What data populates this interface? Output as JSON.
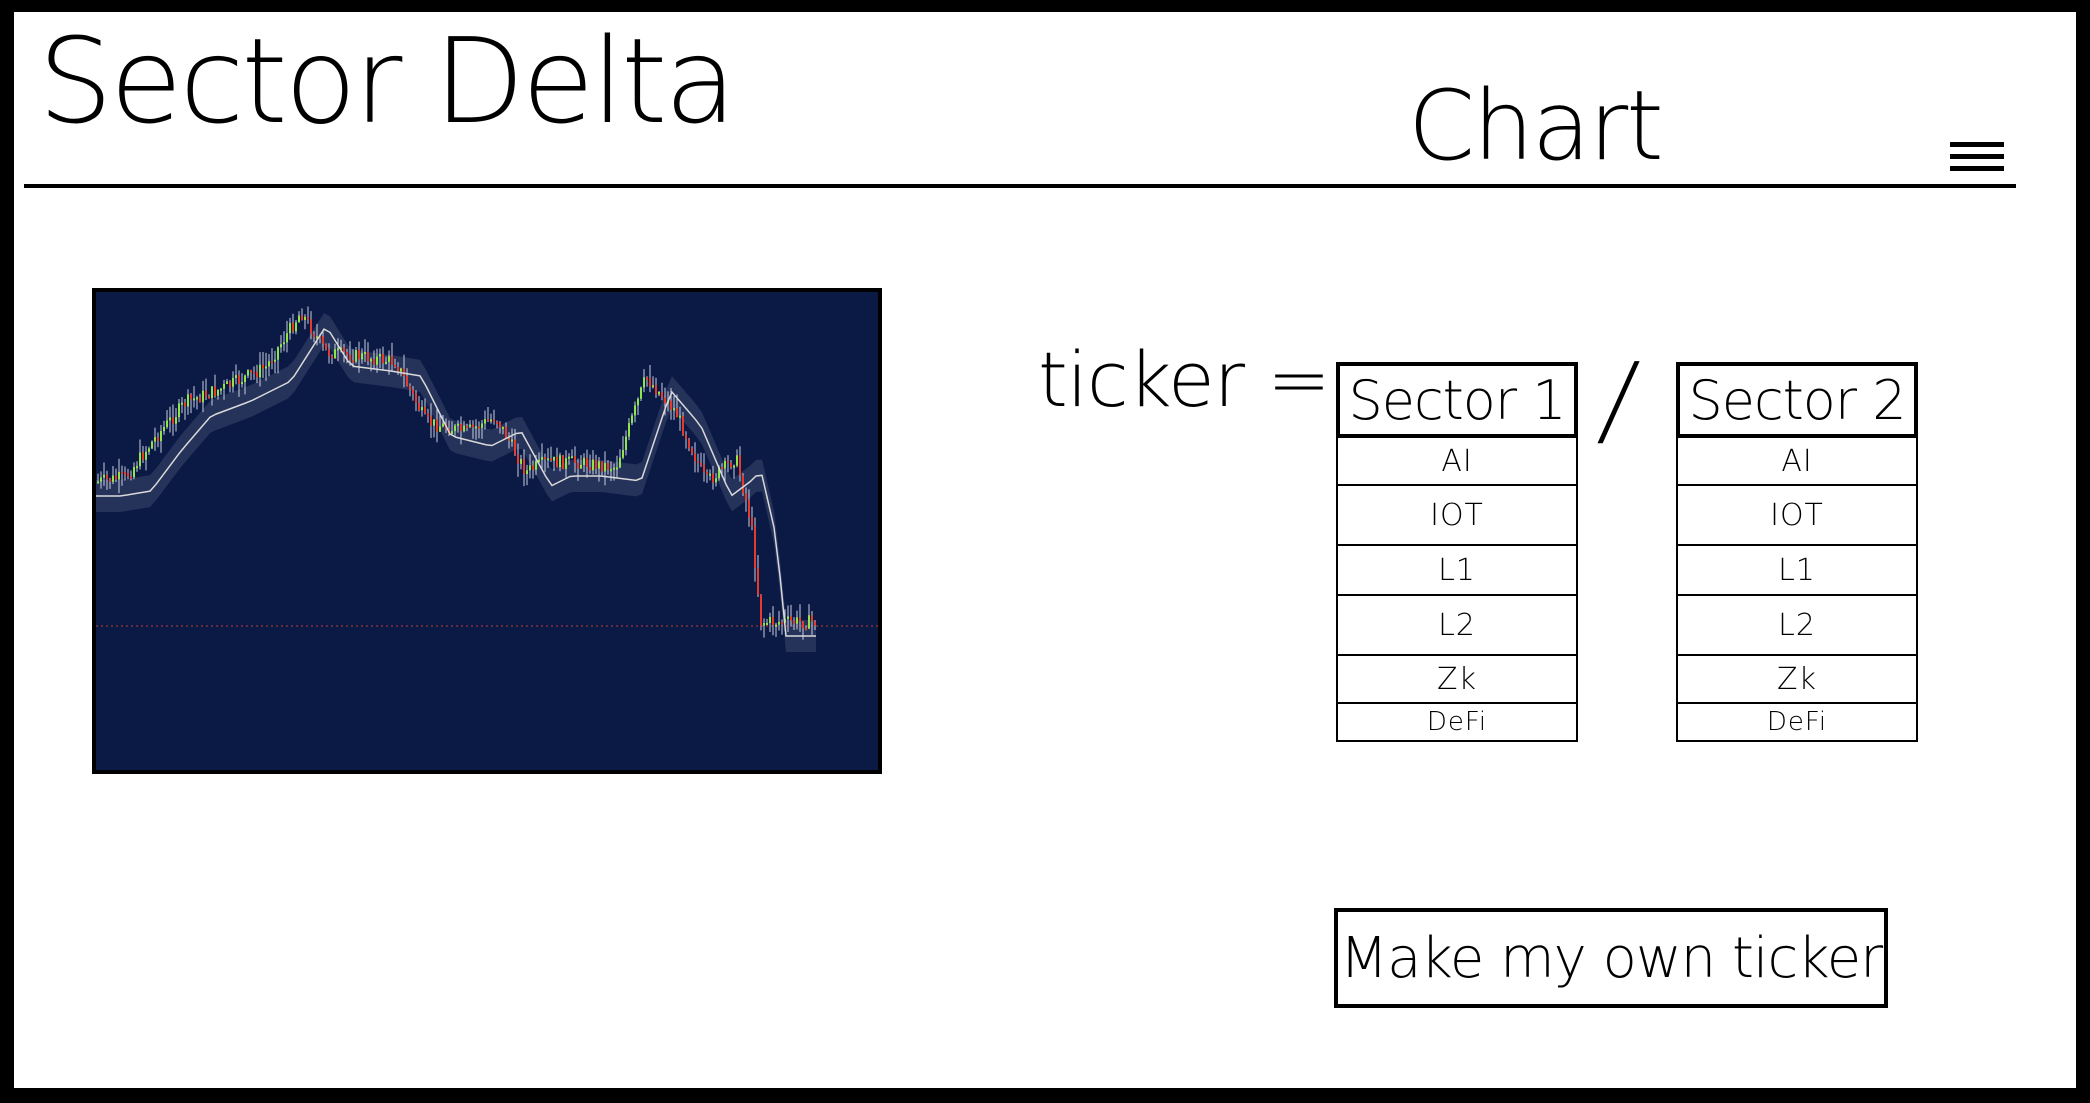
{
  "header": {
    "title": "Sector Delta",
    "page_label": "Chart",
    "menu_icon": "hamburger-menu-icon"
  },
  "chart": {
    "background": "#0b1a45",
    "up_color": "#8ee64a",
    "down_color": "#e53b2c",
    "ma_color": "#d9d9d9",
    "baseline_color": "#c0392b"
  },
  "ticker": {
    "label": "ticker =",
    "divider": "/",
    "sector1": {
      "title": "Sector 1",
      "items": [
        "AI",
        "IOT",
        "L1",
        "L2",
        "Zk",
        "DeFi"
      ]
    },
    "sector2": {
      "title": "Sector 2",
      "items": [
        "AI",
        "IOT",
        "L1",
        "L2",
        "Zk",
        "DeFi"
      ]
    }
  },
  "actions": {
    "make_own": "Make my own ticker"
  }
}
